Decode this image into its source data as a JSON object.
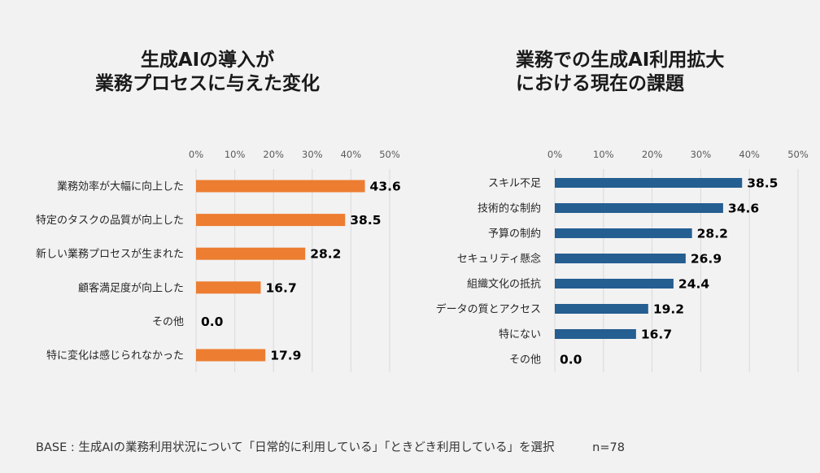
{
  "chart_data": [
    {
      "type": "bar",
      "orientation": "horizontal",
      "title": [
        "生成AIの導入が",
        "業務プロセスに与えた変化"
      ],
      "categories": [
        "業務効率が大幅に向上した",
        "特定のタスクの品質が向上した",
        "新しい業務プロセスが生まれた",
        "顧客満足度が向上した",
        "その他",
        "特に変化は感じられなかった"
      ],
      "values": [
        43.6,
        38.5,
        28.2,
        16.7,
        0.0,
        17.9
      ],
      "value_labels": [
        "43.6",
        "38.5",
        "28.2",
        "16.7",
        "0.0",
        "17.9"
      ],
      "xlim": [
        0,
        50
      ],
      "ticks": [
        "0%",
        "10%",
        "20%",
        "30%",
        "40%",
        "50%"
      ],
      "tick_values": [
        0,
        10,
        20,
        30,
        40,
        50
      ],
      "axis_position": "top",
      "grid": true,
      "color": "#ed7d31"
    },
    {
      "type": "bar",
      "orientation": "horizontal",
      "title": [
        "業務での生成AI利用拡大",
        "における現在の課題"
      ],
      "categories": [
        "スキル不足",
        "技術的な制約",
        "予算の制約",
        "セキュリティ懸念",
        "組織文化の抵抗",
        "データの質とアクセス",
        "特にない",
        "その他"
      ],
      "values": [
        38.5,
        34.6,
        28.2,
        26.9,
        24.4,
        19.2,
        16.7,
        0.0
      ],
      "value_labels": [
        "38.5",
        "34.6",
        "28.2",
        "26.9",
        "24.4",
        "19.2",
        "16.7",
        "0.0"
      ],
      "xlim": [
        0,
        50
      ],
      "ticks": [
        "0%",
        "10%",
        "20%",
        "30%",
        "40%",
        "50%"
      ],
      "tick_values": [
        0,
        10,
        20,
        30,
        40,
        50
      ],
      "axis_position": "top",
      "grid": true,
      "color": "#255e91"
    }
  ],
  "footnote": {
    "base": "BASE : 生成AIの業務利用状況について「日常的に利用している」「ときどき利用している」を選択",
    "n": "n=78"
  }
}
